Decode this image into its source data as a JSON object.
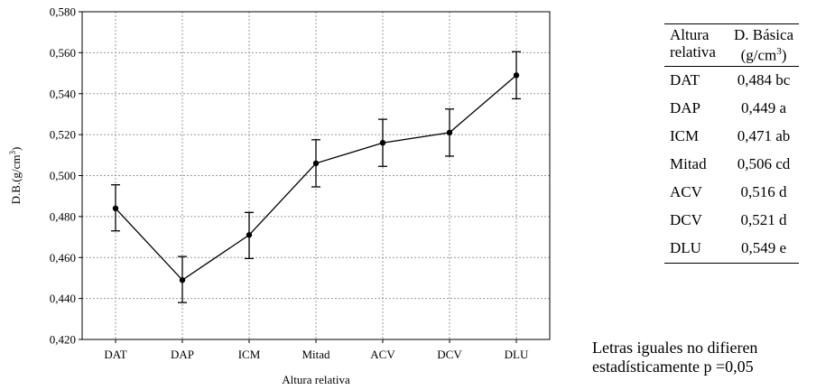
{
  "chart_data": {
    "type": "line",
    "xlabel": "Altura relativa",
    "ylabel": "D.B.(g/cm",
    "ylabel_sup": "3",
    "ylabel_end": ")",
    "categories": [
      "DAT",
      "DAP",
      "ICM",
      "Mitad",
      "ACV",
      "DCV",
      "DLU"
    ],
    "values": [
      0.484,
      0.449,
      0.471,
      0.506,
      0.516,
      0.521,
      0.549
    ],
    "error_low": [
      0.473,
      0.438,
      0.4595,
      0.4945,
      0.5045,
      0.5095,
      0.5375
    ],
    "error_high": [
      0.4955,
      0.4605,
      0.482,
      0.5175,
      0.5275,
      0.5325,
      0.5605
    ],
    "ylim": [
      0.42,
      0.58
    ],
    "yticks": [
      "0,420",
      "0,440",
      "0,460",
      "0,480",
      "0,500",
      "0,520",
      "0,540",
      "0,560",
      "0,580"
    ],
    "grid": true,
    "line_color": "#000000",
    "grid_color": "#9a9a9a"
  },
  "table": {
    "header_col1_line1": "Altura",
    "header_col1_line2": "relativa",
    "header_col2_line1": "D. Básica",
    "header_col2_line2": "(g/cm",
    "header_col2_sup": "3",
    "header_col2_end": ")",
    "rows": [
      {
        "label": "DAT",
        "value": "0,484 bc"
      },
      {
        "label": "DAP",
        "value": "0,449 a"
      },
      {
        "label": "ICM",
        "value": "0,471 ab"
      },
      {
        "label": "Mitad",
        "value": "0,506 cd"
      },
      {
        "label": "ACV",
        "value": "0,516 d"
      },
      {
        "label": "DCV",
        "value": "0,521 d"
      },
      {
        "label": "DLU",
        "value": "0,549 e"
      }
    ]
  },
  "note": {
    "line1": "Letras iguales no difieren",
    "line2": "estadísticamente p =0,05"
  }
}
